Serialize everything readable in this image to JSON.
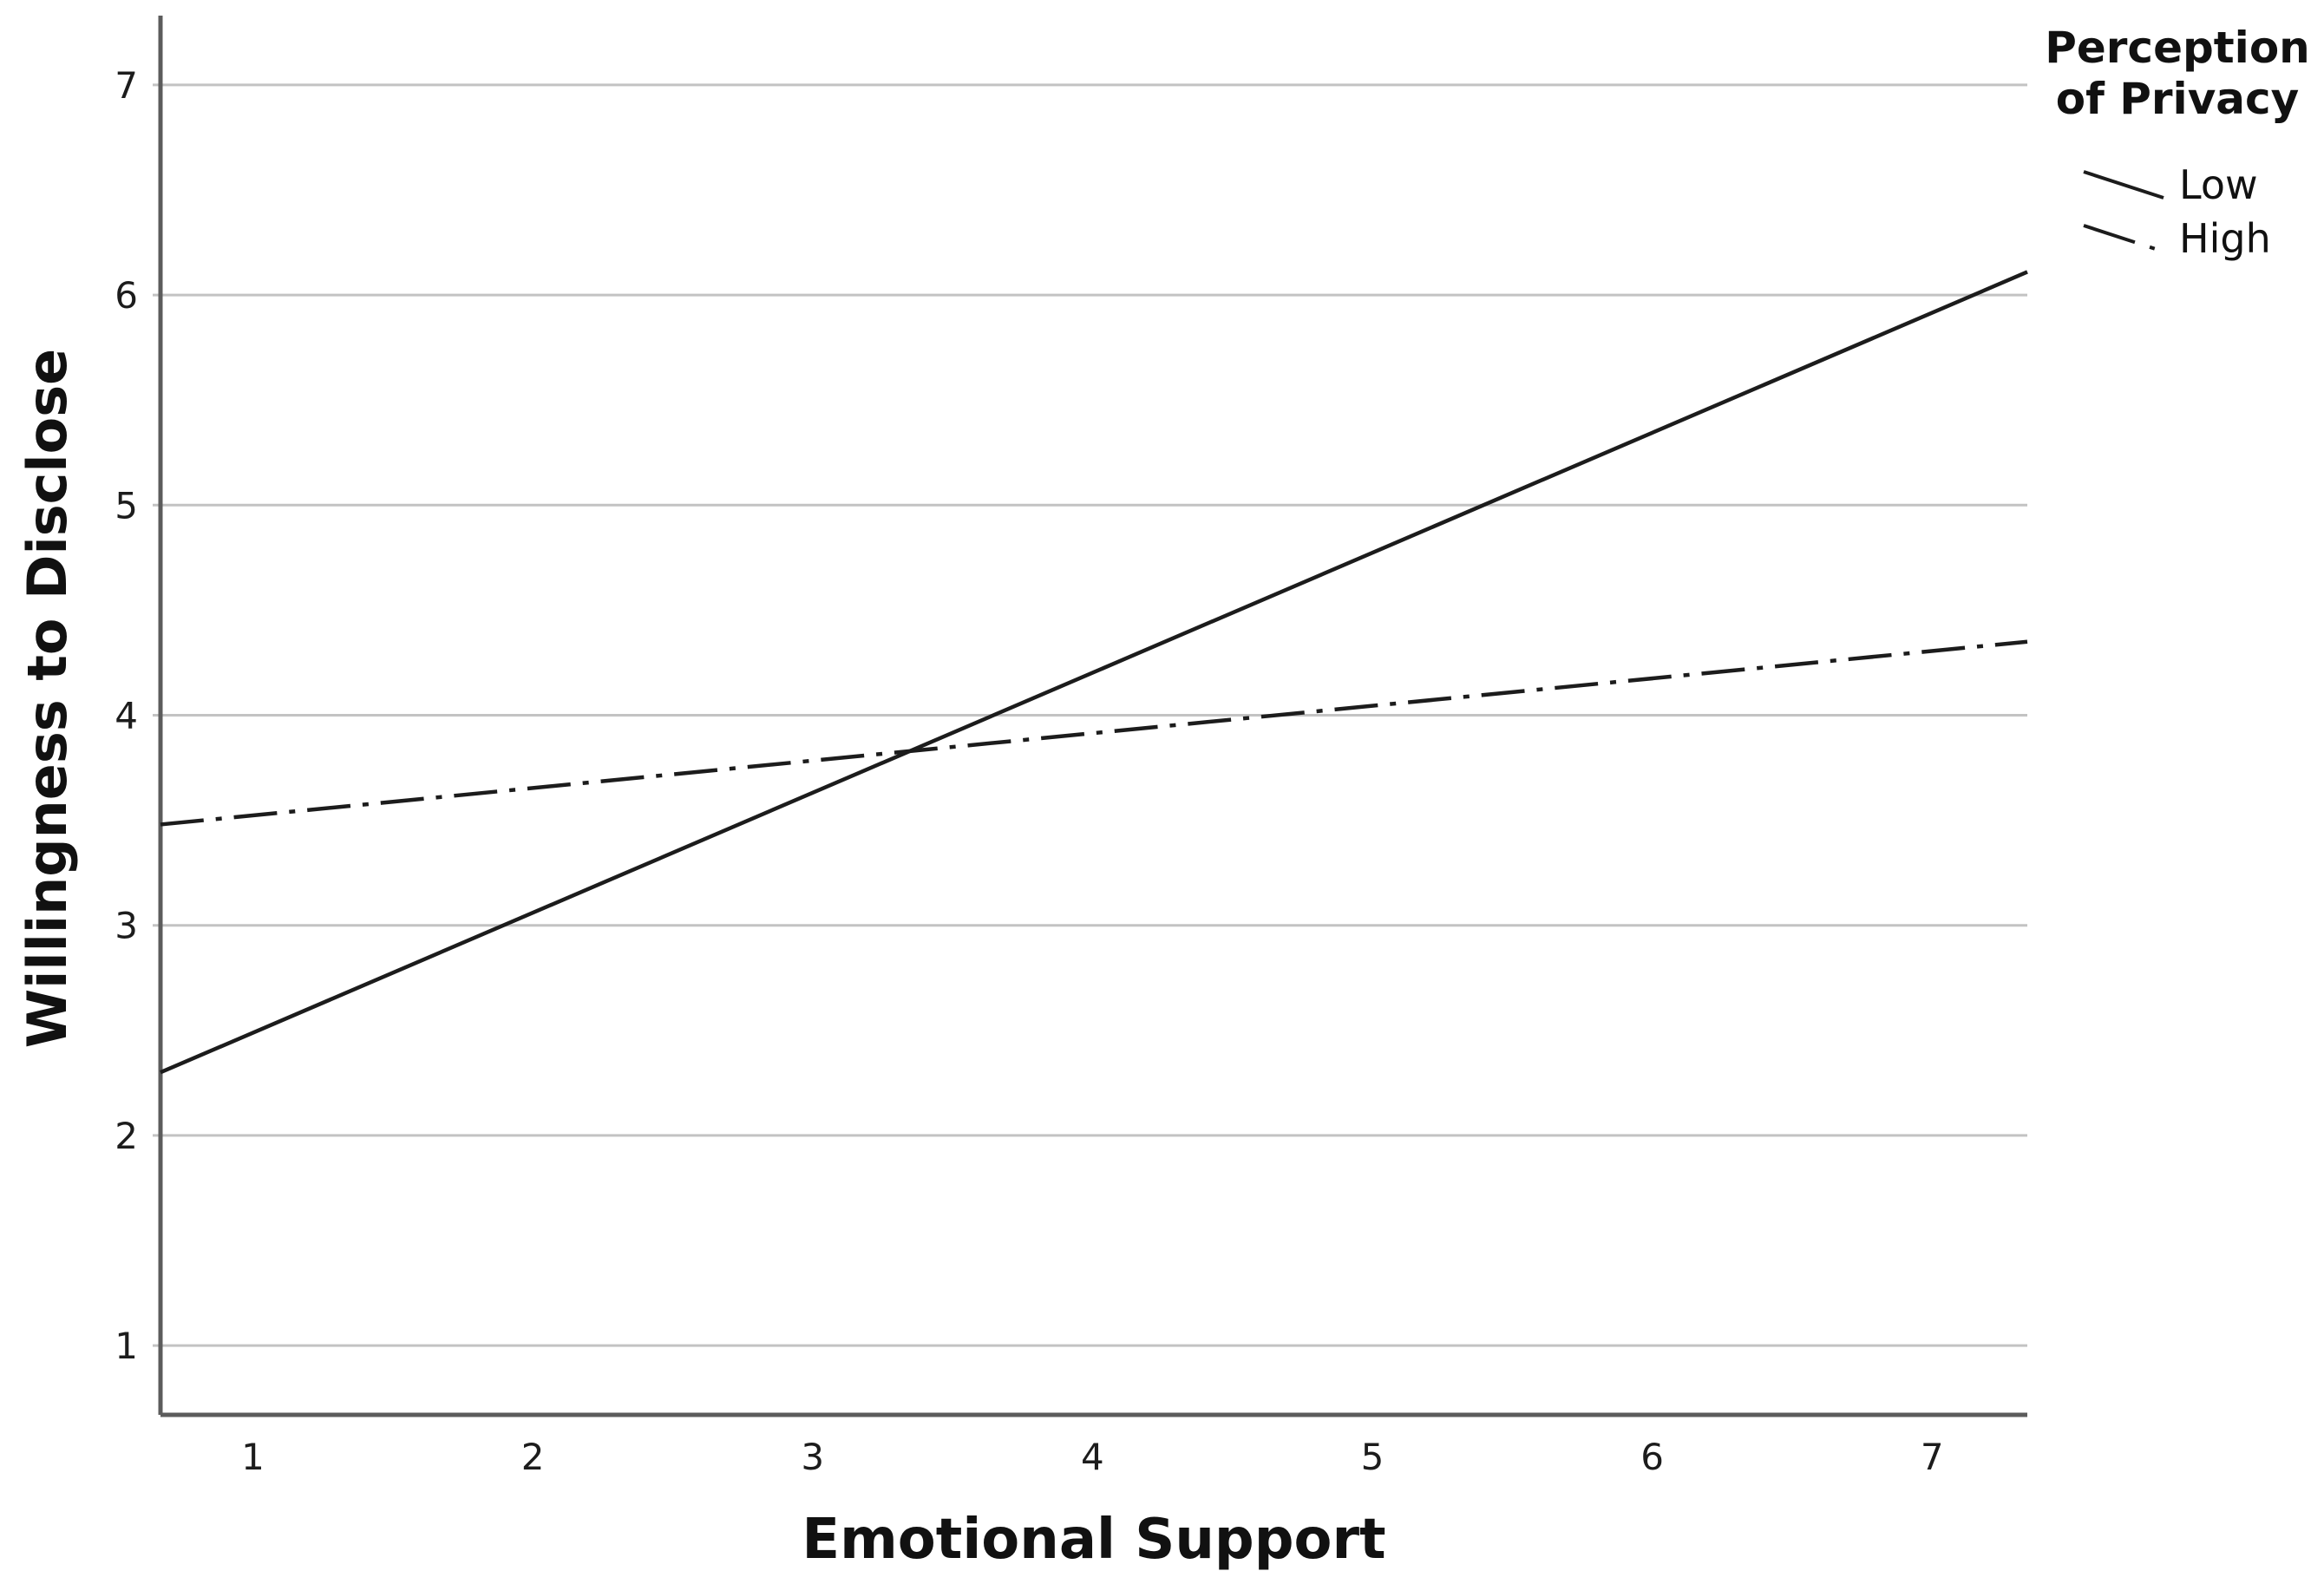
{
  "chart_data": {
    "type": "line",
    "title": "",
    "xlabel": "Emotional Support",
    "ylabel": "Willingness to Disclose",
    "x_ticks": [
      1,
      2,
      3,
      4,
      5,
      6,
      7
    ],
    "y_ticks": [
      1,
      2,
      3,
      4,
      5,
      6,
      7
    ],
    "x_range": [
      0.67,
      7.34
    ],
    "y_range": [
      0.67,
      7.33
    ],
    "grid": "horizontal-only",
    "series": [
      {
        "name": "Low",
        "style": "solid",
        "x": [
          0.67,
          7.34
        ],
        "y": [
          2.3,
          6.11
        ],
        "values_at_ticks": [
          2.49,
          3.06,
          3.63,
          4.2,
          4.77,
          5.34,
          5.91
        ]
      },
      {
        "name": "High",
        "style": "dash-dot",
        "x": [
          0.67,
          7.34
        ],
        "y": [
          3.48,
          4.35
        ],
        "values_at_ticks": [
          3.52,
          3.65,
          3.78,
          3.91,
          4.04,
          4.17,
          4.31
        ]
      }
    ],
    "lines_cross_at": [
      3.35,
      3.83
    ],
    "legend": {
      "title": "Perception of Privacy",
      "position": "top-right",
      "entries": [
        {
          "label": "Low",
          "style": "solid"
        },
        {
          "label": "High",
          "style": "dash-dot"
        }
      ]
    },
    "colors": {
      "series": "#1c1c1c",
      "grid": "#c3c3c3",
      "axis": "#5c5c5c",
      "text": "#111111"
    }
  }
}
